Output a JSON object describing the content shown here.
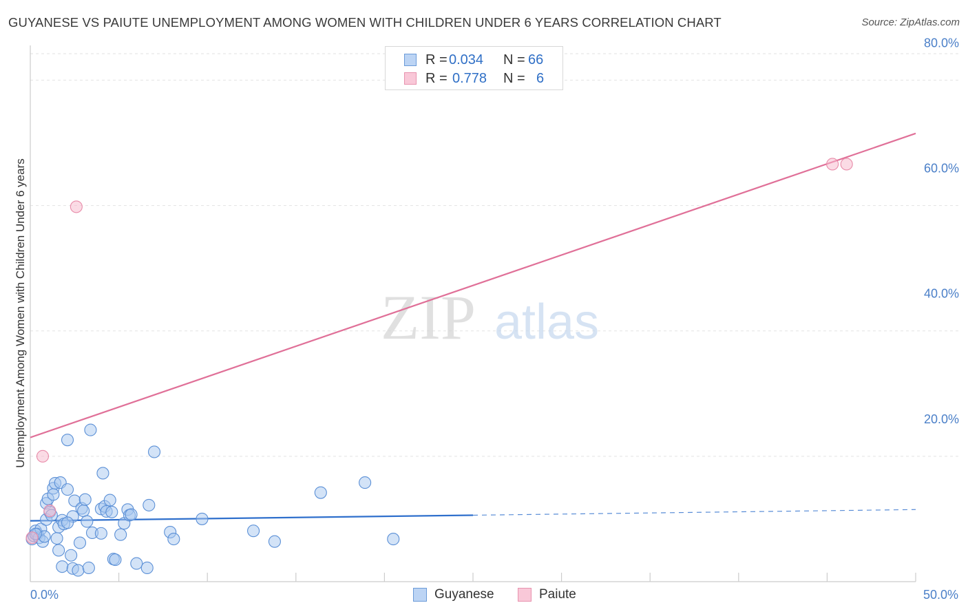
{
  "header": {
    "title": "GUYANESE VS PAIUTE UNEMPLOYMENT AMONG WOMEN WITH CHILDREN UNDER 6 YEARS CORRELATION CHART",
    "source": "Source: ZipAtlas.com"
  },
  "watermark": {
    "part1": "ZIP",
    "part2": "atlas"
  },
  "legend": {
    "rows": [
      {
        "r_label": "R =",
        "r_value": "0.034",
        "n_label": "N =",
        "n_value": "66"
      },
      {
        "r_label": "R =",
        "r_value": "0.778",
        "n_label": "N =",
        "n_value": "6"
      }
    ]
  },
  "bottom_legend": {
    "series1": "Guyanese",
    "series2": "Paiute"
  },
  "colors": {
    "guyanese_fill": "#a8c8f0",
    "guyanese_stroke": "#5a8fd6",
    "guyanese_line": "#2e6fcc",
    "paiute_fill": "#f7b8cc",
    "paiute_stroke": "#e88aa8",
    "paiute_line": "#e07098",
    "grid": "#e2e2e2",
    "tick_text": "#4a7fc8"
  },
  "chart_data": {
    "type": "scatter",
    "title": "GUYANESE VS PAIUTE UNEMPLOYMENT AMONG WOMEN WITH CHILDREN UNDER 6 YEARS CORRELATION CHART",
    "xlabel": "",
    "ylabel": "Unemployment Among Women with Children Under 6 years",
    "xlim": [
      0,
      50
    ],
    "ylim": [
      0,
      84
    ],
    "x_ticks": [
      {
        "value": 0,
        "label": "0.0%"
      },
      {
        "value": 50,
        "label": "50.0%"
      }
    ],
    "y_ticks": [
      {
        "value": 20,
        "label": "20.0%"
      },
      {
        "value": 40,
        "label": "40.0%"
      },
      {
        "value": 60,
        "label": "60.0%"
      },
      {
        "value": 80,
        "label": "80.0%"
      }
    ],
    "series": [
      {
        "name": "Guyanese",
        "points": [
          [
            0.1,
            6.8
          ],
          [
            0.2,
            7.3
          ],
          [
            0.3,
            8.1
          ],
          [
            0.4,
            7.6
          ],
          [
            0.5,
            7.0
          ],
          [
            0.6,
            8.4
          ],
          [
            0.7,
            6.4
          ],
          [
            0.8,
            7.2
          ],
          [
            0.9,
            12.5
          ],
          [
            0.9,
            9.9
          ],
          [
            1.0,
            13.2
          ],
          [
            1.1,
            11.1
          ],
          [
            1.2,
            10.6
          ],
          [
            1.3,
            14.9
          ],
          [
            1.3,
            13.9
          ],
          [
            1.4,
            15.7
          ],
          [
            1.5,
            6.9
          ],
          [
            1.6,
            8.7
          ],
          [
            1.6,
            5.0
          ],
          [
            1.7,
            15.8
          ],
          [
            1.8,
            9.8
          ],
          [
            1.8,
            2.4
          ],
          [
            1.9,
            9.2
          ],
          [
            2.1,
            14.7
          ],
          [
            2.1,
            22.6
          ],
          [
            2.3,
            4.2
          ],
          [
            2.4,
            2.1
          ],
          [
            2.4,
            10.4
          ],
          [
            2.5,
            12.9
          ],
          [
            2.7,
            1.8
          ],
          [
            2.8,
            6.2
          ],
          [
            2.9,
            11.7
          ],
          [
            3.0,
            11.3
          ],
          [
            3.1,
            13.1
          ],
          [
            3.2,
            9.6
          ],
          [
            3.3,
            2.2
          ],
          [
            3.4,
            24.2
          ],
          [
            3.5,
            7.8
          ],
          [
            4.0,
            11.6
          ],
          [
            4.0,
            7.7
          ],
          [
            4.1,
            17.3
          ],
          [
            4.2,
            12.0
          ],
          [
            4.3,
            11.2
          ],
          [
            4.5,
            13.0
          ],
          [
            4.6,
            11.1
          ],
          [
            4.7,
            3.6
          ],
          [
            4.8,
            3.5
          ],
          [
            5.1,
            7.5
          ],
          [
            5.3,
            9.3
          ],
          [
            5.5,
            11.5
          ],
          [
            5.6,
            10.6
          ],
          [
            5.7,
            10.7
          ],
          [
            6.0,
            2.9
          ],
          [
            6.6,
            2.2
          ],
          [
            6.7,
            12.2
          ],
          [
            7.0,
            20.7
          ],
          [
            7.9,
            7.9
          ],
          [
            8.1,
            6.8
          ],
          [
            9.7,
            10.0
          ],
          [
            12.6,
            8.1
          ],
          [
            13.8,
            6.4
          ],
          [
            16.4,
            14.2
          ],
          [
            18.9,
            15.8
          ],
          [
            20.5,
            6.8
          ],
          [
            0.3,
            7.6
          ],
          [
            2.1,
            9.4
          ]
        ],
        "trendline": {
          "solid": [
            [
              0,
              9.7
            ],
            [
              25,
              10.6
            ]
          ],
          "dashed": [
            [
              25,
              10.6
            ],
            [
              50,
              11.5
            ]
          ]
        }
      },
      {
        "name": "Paiute",
        "points": [
          [
            0.1,
            7.0
          ],
          [
            0.7,
            20.0
          ],
          [
            1.1,
            11.3
          ],
          [
            2.6,
            59.8
          ],
          [
            45.3,
            66.6
          ],
          [
            46.1,
            66.6
          ]
        ],
        "trendline": {
          "solid": [
            [
              0,
              23.0
            ],
            [
              50,
              71.5
            ]
          ]
        }
      }
    ]
  }
}
